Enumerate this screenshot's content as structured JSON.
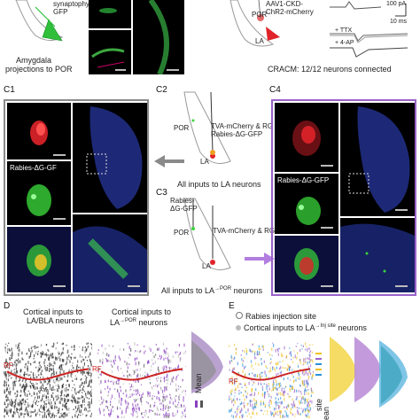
{
  "top_left": {
    "label_line1": "synaptophysin-",
    "label_line2": "GFP",
    "caption_line1": "Amygdala",
    "caption_line2": "projections to POR"
  },
  "top_right": {
    "virus_line1": "AAV1-CKD-",
    "virus_line2": "ChR2-mCherry",
    "por_label": "POR",
    "la_label": "LA",
    "scale_current": "100 pA",
    "scale_time": "10 ms",
    "ttx_label": "+ TTX",
    "ap_label": "+ 4-AP",
    "caption": "CRACM: 12/12 neurons connected"
  },
  "panel_c": {
    "c1": "C1",
    "c2": "C2",
    "c3": "C3",
    "c4": "C4",
    "c1_rabies_label": "Rabies-ΔG-GF",
    "c4_rabies_label": "Rabies-ΔG-GFP",
    "c2_por": "POR",
    "c2_tva_line1": "TVA-mCherry & RG",
    "c2_tva_line2": "Rabies-ΔG-GFP",
    "c2_la": "LA",
    "c2_caption": "All inputs to LA neurons",
    "c3_rabies_line1": "Rabies-",
    "c3_rabies_line2": "ΔG-GFP",
    "c3_por": "POR",
    "c3_tva": "TVA-mCherry & RG",
    "c3_la": "LA",
    "c3_caption_prefix": "All inputs to LA",
    "c3_caption_arrow": "→POR",
    "c3_caption_suffix": " neurons"
  },
  "panel_d": {
    "letter": "D",
    "left_title_line1": "Cortical inputs to",
    "left_title_line2": "LA/BLA neurons",
    "right_title_line1": "Cortical inputs to",
    "right_title_line2": "LA",
    "right_title_sup": "→POR",
    "right_title_suffix": " neurons",
    "rf_left": "RF",
    "rf_right": "RF",
    "mean_label": "Mean"
  },
  "panel_e": {
    "letter": "E",
    "legend_1": "Rabies injection site",
    "legend_2_prefix": "Cortical inputs to LA",
    "legend_2_sup": "→Inj site",
    "legend_2_suffix": " neurons",
    "rf_label": "RF",
    "site_label": "site",
    "mean_label": "ean"
  },
  "colors": {
    "gray_frame": "#8a8a8a",
    "purple_frame": "#9a62c9",
    "purple_arrow": "#b27ee0",
    "gray_arrow": "#8a8a8a",
    "rf_line": "#cc2222",
    "green_cells": "#39d43a",
    "red_cells": "#e0242a",
    "blue_tissue": "#2a3aa8"
  }
}
